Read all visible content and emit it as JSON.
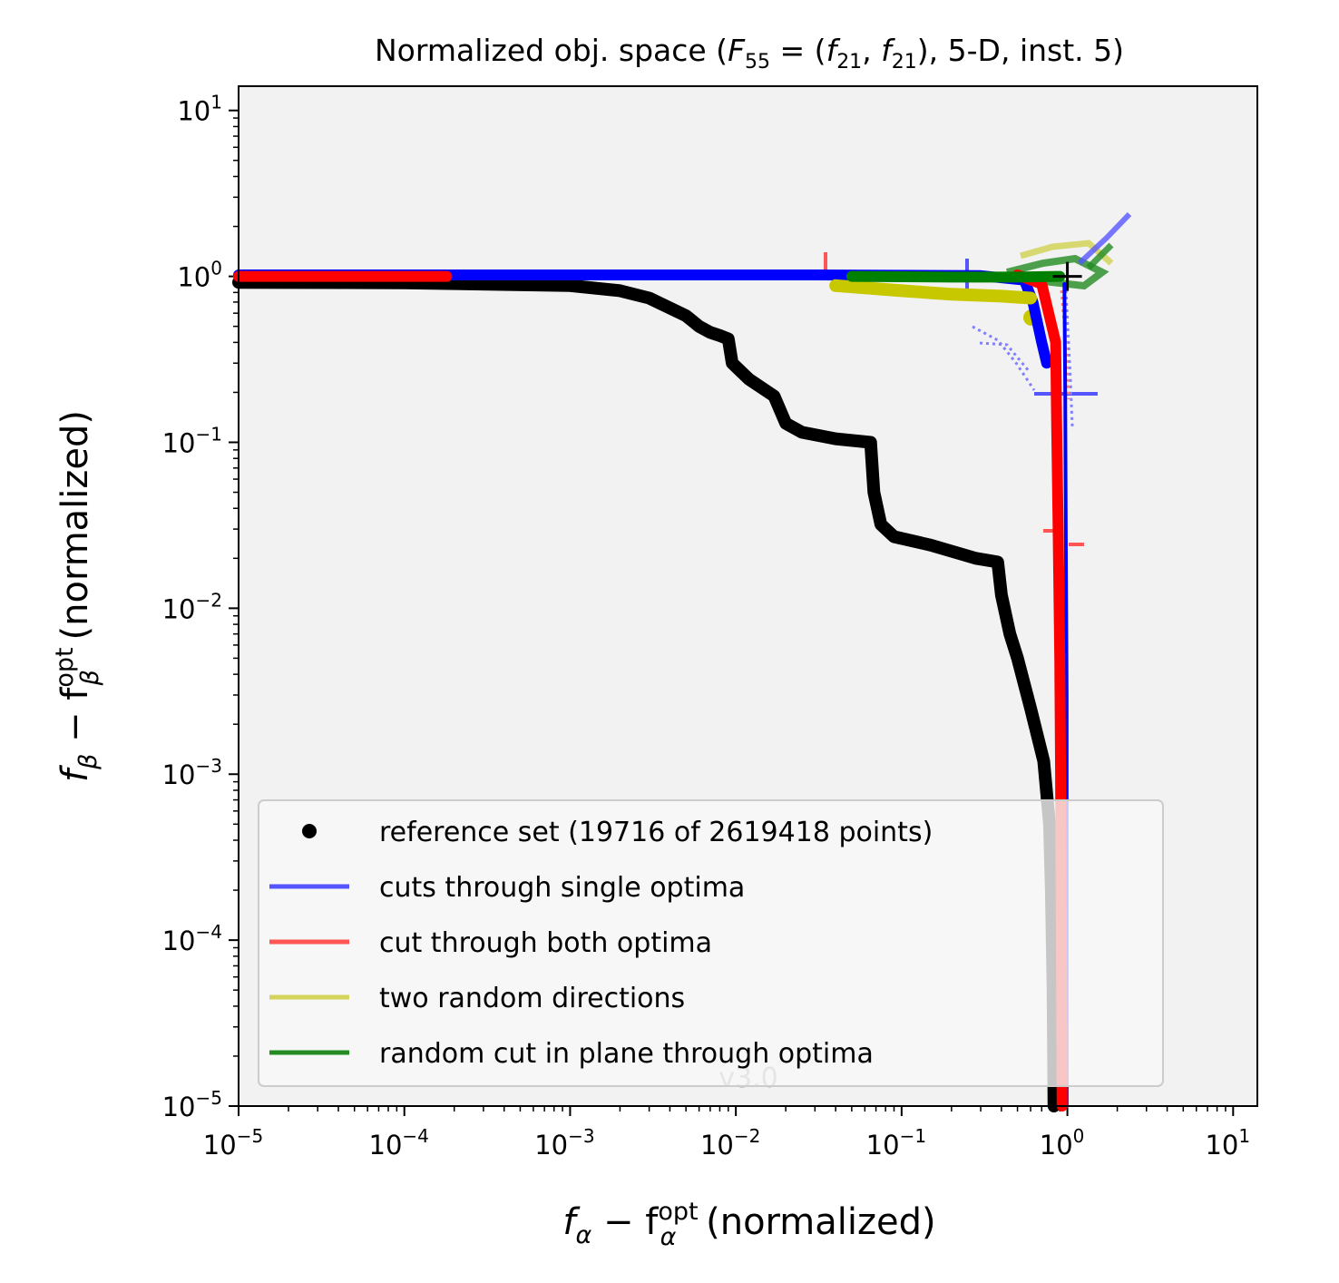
{
  "chart_data": {
    "type": "line",
    "title_main": "Normalized obj. space (",
    "title_F": "F",
    "title_F_sub": "55",
    "title_eq": " = (",
    "title_f1": "f",
    "title_f1_sub": "21",
    "title_comma": ", ",
    "title_f2": "f",
    "title_f2_sub": "21",
    "title_tail": "), 5-D, inst. 5)",
    "xlabel_f": "f",
    "xlabel_sub": "α",
    "xlabel_minus": " − f",
    "xlabel_sup": "opt",
    "xlabel_sub2": "α",
    "xlabel_tail": " (normalized)",
    "ylabel_f": "f",
    "ylabel_sub": "β",
    "ylabel_minus": " − f",
    "ylabel_sup": "opt",
    "ylabel_sub2": "β",
    "ylabel_tail": " (normalized)",
    "xscale": "log",
    "yscale": "log",
    "xlim": [
      1e-05,
      14
    ],
    "ylim": [
      1e-05,
      14
    ],
    "x_ticks": [
      {
        "base": "10",
        "exp": "−5",
        "value": 1e-05
      },
      {
        "base": "10",
        "exp": "−4",
        "value": 0.0001
      },
      {
        "base": "10",
        "exp": "−3",
        "value": 0.001
      },
      {
        "base": "10",
        "exp": "−2",
        "value": 0.01
      },
      {
        "base": "10",
        "exp": "−1",
        "value": 0.1
      },
      {
        "base": "10",
        "exp": "0",
        "value": 1
      },
      {
        "base": "10",
        "exp": "1",
        "value": 10
      }
    ],
    "y_ticks": [
      {
        "base": "10",
        "exp": "−5",
        "value": 1e-05
      },
      {
        "base": "10",
        "exp": "−4",
        "value": 0.0001
      },
      {
        "base": "10",
        "exp": "−3",
        "value": 0.001
      },
      {
        "base": "10",
        "exp": "−2",
        "value": 0.01
      },
      {
        "base": "10",
        "exp": "−1",
        "value": 0.1
      },
      {
        "base": "10",
        "exp": "0",
        "value": 1
      },
      {
        "base": "10",
        "exp": "1",
        "value": 10
      }
    ],
    "plot_background": "#f2f2f2",
    "watermark": "v3.0",
    "legend_position": "lower-left",
    "legend": [
      {
        "label": "reference set (19716 of 2619418 points)",
        "marker": "dot",
        "color": "#000000"
      },
      {
        "label": "cuts through single optima",
        "marker": "line",
        "color": "#5555ff"
      },
      {
        "label": "cut through both optima",
        "marker": "line",
        "color": "#ff5555"
      },
      {
        "label": "two random directions",
        "marker": "line",
        "color": "#d4d45a"
      },
      {
        "label": "random cut in plane through optima",
        "marker": "line",
        "color": "#228b22"
      }
    ],
    "optimum_marker": {
      "x": 1,
      "y": 1,
      "color": "#000000"
    },
    "series": [
      {
        "name": "reference set (19716 of 2619418 points)",
        "color": "#000000",
        "width": 14,
        "points": [
          [
            1e-05,
            0.92
          ],
          [
            0.0001,
            0.915
          ],
          [
            0.001,
            0.88
          ],
          [
            0.002,
            0.82
          ],
          [
            0.003,
            0.74
          ],
          [
            0.005,
            0.58
          ],
          [
            0.006,
            0.5
          ],
          [
            0.007,
            0.46
          ],
          [
            0.008,
            0.44
          ],
          [
            0.009,
            0.42
          ],
          [
            0.0095,
            0.3
          ],
          [
            0.012,
            0.24
          ],
          [
            0.017,
            0.19
          ],
          [
            0.02,
            0.13
          ],
          [
            0.025,
            0.115
          ],
          [
            0.04,
            0.105
          ],
          [
            0.065,
            0.1
          ],
          [
            0.068,
            0.05
          ],
          [
            0.075,
            0.032
          ],
          [
            0.09,
            0.027
          ],
          [
            0.15,
            0.024
          ],
          [
            0.28,
            0.02
          ],
          [
            0.38,
            0.019
          ],
          [
            0.4,
            0.012
          ],
          [
            0.45,
            0.007
          ],
          [
            0.5,
            0.005
          ],
          [
            0.6,
            0.0025
          ],
          [
            0.72,
            0.0012
          ],
          [
            0.78,
            0.0005
          ],
          [
            0.8,
            0.0002
          ],
          [
            0.82,
            5e-05
          ],
          [
            0.83,
            1e-05
          ]
        ]
      },
      {
        "name": "cuts through single optima",
        "color": "#0000ff",
        "width": 12,
        "points": [
          [
            1e-05,
            1.02
          ],
          [
            0.0005,
            1.02
          ],
          [
            0.03,
            1.02
          ],
          [
            0.3,
            1.01
          ],
          [
            0.55,
            0.95
          ],
          [
            0.62,
            0.7
          ],
          [
            0.7,
            0.4
          ],
          [
            0.75,
            0.3
          ]
        ]
      },
      {
        "name": "cuts through single optima (vertical)",
        "color": "#0000ff",
        "width": 4,
        "points": [
          [
            0.96,
            0.9
          ],
          [
            0.97,
            0.2
          ],
          [
            0.98,
            0.02
          ],
          [
            0.99,
            0.003
          ],
          [
            0.99,
            1e-05
          ]
        ]
      },
      {
        "name": "cut through both optima",
        "color": "#ff0000",
        "width": 12,
        "points": [
          [
            0.5,
            1.02
          ],
          [
            0.7,
            0.9
          ],
          [
            0.85,
            0.4
          ],
          [
            0.86,
            0.15
          ],
          [
            0.88,
            0.03
          ],
          [
            0.9,
            0.005
          ],
          [
            0.91,
            0.001
          ],
          [
            0.92,
            0.0001
          ],
          [
            0.93,
            1e-05
          ]
        ]
      },
      {
        "name": "cut through both optima (left)",
        "color": "#ff0000",
        "width": 12,
        "points": [
          [
            1e-05,
            1.0
          ],
          [
            0.00018,
            1.0
          ]
        ]
      },
      {
        "name": "two random directions",
        "color": "#c8c800",
        "width": 14,
        "points": [
          [
            0.04,
            0.88
          ],
          [
            0.1,
            0.82
          ],
          [
            0.2,
            0.78
          ],
          [
            0.4,
            0.76
          ],
          [
            0.6,
            0.74
          ]
        ]
      },
      {
        "name": "random cut in plane through optima",
        "color": "#008000",
        "width": 12,
        "points": [
          [
            0.05,
            1.0
          ],
          [
            0.2,
            0.99
          ],
          [
            0.5,
            0.99
          ],
          [
            0.9,
            1.0
          ]
        ]
      }
    ]
  }
}
